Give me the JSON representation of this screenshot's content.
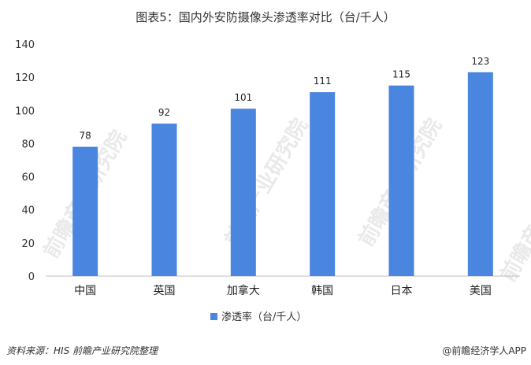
{
  "title": "图表5：国内外安防摄像头渗透率对比（台/千人）",
  "source": "资料来源：HIS  前瞻产业研究院整理",
  "brand": "@前瞻经济学人APP",
  "watermark": "前瞻产业研究院",
  "colors": {
    "bar": "#4A86E0",
    "axis": "#BFBFBF",
    "grid": "#D9D9D9"
  },
  "chart_data": {
    "type": "bar",
    "title": "图表5：国内外安防摄像头渗透率对比（台/千人）",
    "categories": [
      "中国",
      "英国",
      "加拿大",
      "韩国",
      "日本",
      "美国"
    ],
    "series": [
      {
        "name": "渗透率（台/千人）",
        "values": [
          78,
          92,
          101,
          111,
          115,
          123
        ]
      }
    ],
    "ylim": [
      0,
      140
    ],
    "yticks": [
      0,
      20,
      40,
      60,
      80,
      100,
      120,
      140
    ],
    "xlabel": "",
    "ylabel": "",
    "legend": "bottom-center",
    "grid": false
  }
}
